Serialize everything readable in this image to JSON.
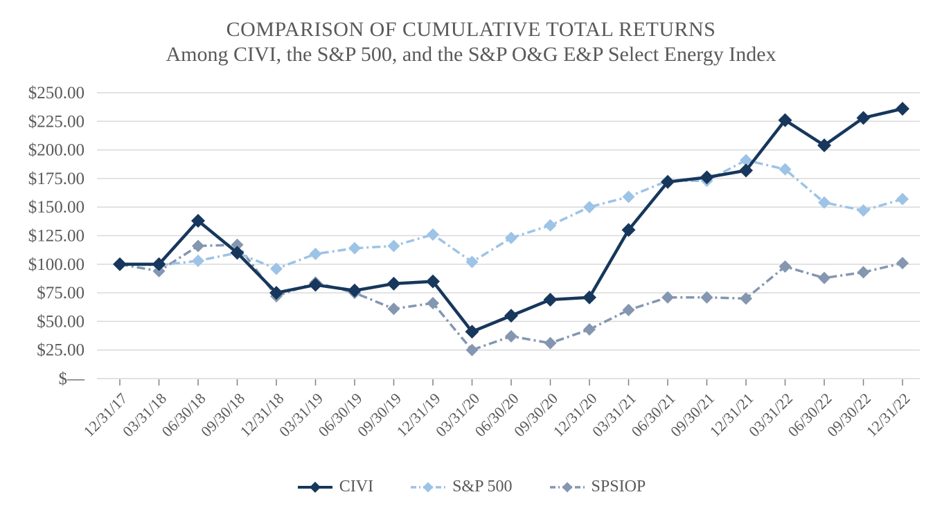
{
  "chart_data": {
    "type": "line",
    "title": "COMPARISON OF CUMULATIVE TOTAL RETURNS",
    "subtitle": "Among CIVI, the S&P 500, and the S&P O&G E&P Select Energy Index",
    "categories": [
      "12/31/17",
      "03/31/18",
      "06/30/18",
      "09/30/18",
      "12/31/18",
      "03/31/19",
      "06/30/19",
      "09/30/19",
      "12/31/19",
      "03/31/20",
      "06/30/20",
      "09/30/20",
      "12/31/20",
      "03/31/21",
      "06/30/21",
      "09/30/21",
      "12/31/21",
      "03/31/22",
      "06/30/22",
      "09/30/22",
      "12/31/22"
    ],
    "series": [
      {
        "name": "CIVI",
        "color": "#17375c",
        "line_style": "solid",
        "marker": "diamond",
        "values": [
          100,
          100,
          138,
          110,
          75,
          82,
          77,
          83,
          85,
          41,
          55,
          69,
          71,
          130,
          172,
          176,
          182,
          226,
          204,
          228,
          236
        ]
      },
      {
        "name": "S&P 500",
        "color": "#9dc3e6",
        "line_style": "dash-dot",
        "marker": "diamond",
        "values": [
          100,
          99,
          103,
          110,
          96,
          109,
          114,
          116,
          126,
          102,
          123,
          134,
          150,
          159,
          173,
          173,
          191,
          183,
          154,
          147,
          157
        ]
      },
      {
        "name": "SPSIOP",
        "color": "#8496b0",
        "line_style": "dash-dot",
        "marker": "diamond",
        "values": [
          100,
          94,
          116,
          117,
          72,
          84,
          75,
          61,
          66,
          25,
          37,
          31,
          43,
          60,
          71,
          71,
          70,
          98,
          88,
          93,
          101
        ]
      }
    ],
    "ylim": [
      0,
      250
    ],
    "y_tick_step": 25,
    "y_tick_labels": [
      "$—",
      "$25.00",
      "$50.00",
      "$75.00",
      "$100.00",
      "$125.00",
      "$150.00",
      "$175.00",
      "$200.00",
      "$225.00",
      "$250.00"
    ],
    "x_tick_rotation": -45,
    "grid": "horizontal",
    "legend_position": "bottom",
    "legend_labels": [
      "CIVI",
      "S&P 500",
      "SPSIOP"
    ]
  },
  "style_colors": {
    "gridline": "#d9d9d9",
    "axis_line": "#d0d0d0",
    "tick_mark": "#808080",
    "label_text": "#595959"
  }
}
